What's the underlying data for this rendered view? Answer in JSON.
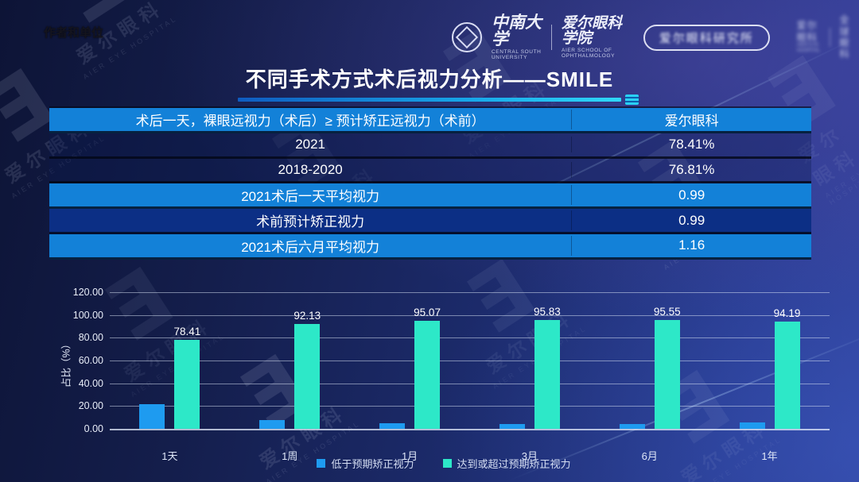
{
  "page": {
    "author_note": "作者和单位",
    "title": "不同手术方式术后视力分析——SMILE"
  },
  "header": {
    "university_cn": "中南大学",
    "university_en": "CENTRAL SOUTH UNIVERSITY",
    "school_cn": "爱尔眼科学院",
    "school_en": "AIER SCHOOL OF OPHTHALMOLOGY",
    "badge": "爱尔眼科研究所",
    "logo_right_1_cn": "爱尔眼科",
    "logo_right_1_en": "AIER EYE HOSPITAL",
    "logo_right_2_cn": "全球眼科"
  },
  "watermark": {
    "glyph": "Ǝ",
    "text_cn": "爱尔眼科",
    "text_en": "AIER EYE HOSPITAL"
  },
  "table": {
    "header_left": "术后一天，裸眼远视力（术后）≥ 预计矫正远视力（术前）",
    "header_right": "爱尔眼科",
    "rows": [
      {
        "label": "2021",
        "value": "78.41%",
        "style": "plain"
      },
      {
        "label": "2018-2020",
        "value": "76.81%",
        "style": "plain"
      },
      {
        "label": "2021术后一天平均视力",
        "value": "0.99",
        "style": "blue"
      },
      {
        "label": "术前预计矫正视力",
        "value": "0.99",
        "style": "navy"
      },
      {
        "label": "2021术后六月平均视力",
        "value": "1.16",
        "style": "blue"
      }
    ]
  },
  "chart_data": {
    "type": "bar",
    "title": "",
    "xlabel": "",
    "ylabel": "占比（%）",
    "ylim": [
      0,
      120
    ],
    "ytick_step": 20,
    "yticks": [
      "120.00",
      "100.00",
      "80.00",
      "60.00",
      "40.00",
      "20.00",
      "0.00"
    ],
    "grid": true,
    "legend_position": "bottom",
    "categories": [
      "1天",
      "1周",
      "1月",
      "3月",
      "6月",
      "1年"
    ],
    "series": [
      {
        "name": "低于预期矫正视力",
        "color": "#1e9bf0",
        "values": [
          21.59,
          7.87,
          4.93,
          4.17,
          4.45,
          5.81
        ],
        "labels": null
      },
      {
        "name": "达到或超过预期矫正视力",
        "color": "#2de8c8",
        "values": [
          78.41,
          92.13,
          95.07,
          95.83,
          95.55,
          94.19
        ],
        "labels": [
          "78.41",
          "92.13",
          "95.07",
          "95.83",
          "95.55",
          "94.19"
        ]
      }
    ]
  },
  "colors": {
    "row_blue": "#1381d8",
    "row_navy": "#0c2f85",
    "bar_blue": "#1e9bf0",
    "bar_cyan": "#2de8c8",
    "underline_gradient_start": "#0f5cc0",
    "underline_gradient_end": "#2fd8f8"
  }
}
